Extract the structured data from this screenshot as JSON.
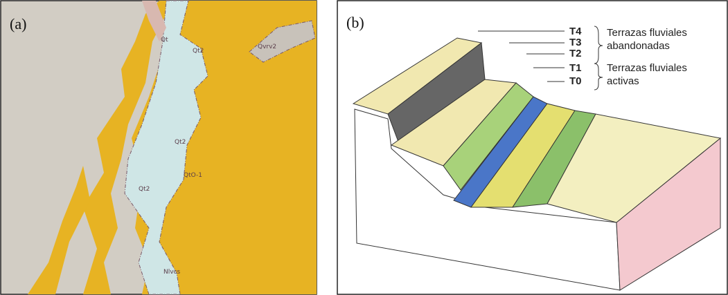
{
  "panels": [
    {
      "label": "(a)",
      "map_labels": [
        "Qt",
        "Qt2",
        "Qvrv2",
        "Qt2",
        "QtO-1",
        "Qt2",
        "Nlvcs"
      ]
    },
    {
      "label": "(b)",
      "terrace_labels": [
        "T4",
        "T3",
        "T2",
        "T1",
        "T0"
      ],
      "groups": [
        {
          "lines": [
            "Terrazas fluviales",
            "abandonadas"
          ]
        },
        {
          "lines": [
            "Terrazas fluviales",
            "activas"
          ]
        }
      ]
    }
  ]
}
